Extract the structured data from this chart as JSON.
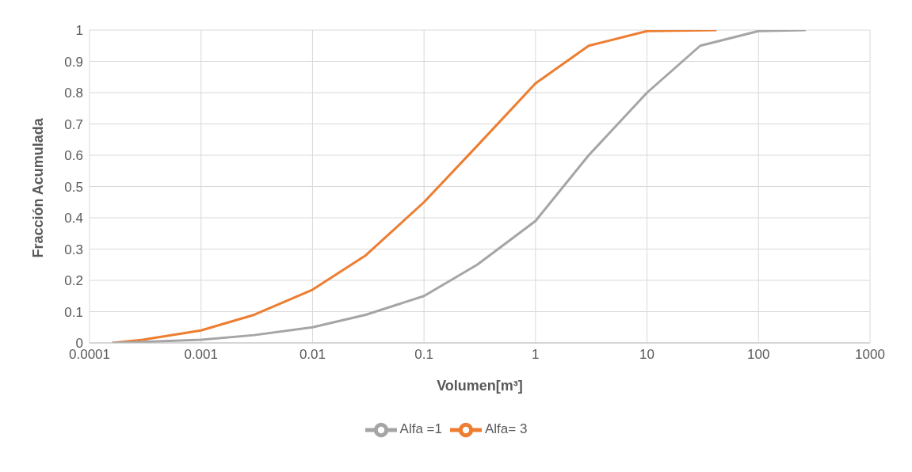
{
  "chart_data": {
    "type": "line",
    "xlabel": "Volumen[m³]",
    "ylabel": "Fracción Acumulada",
    "log": "x",
    "xlim": [
      0.0001,
      1000
    ],
    "xticks": [
      0.0001,
      0.001,
      0.01,
      0.1,
      1,
      10,
      100,
      1000
    ],
    "ylim": [
      0,
      1
    ],
    "yticks": [
      0,
      0.1,
      0.2,
      0.3,
      0.4,
      0.5,
      0.6,
      0.7,
      0.8,
      0.9,
      1
    ],
    "grid": true,
    "legend": "bottom",
    "marker": "none",
    "line_style": "solid",
    "series": [
      {
        "name": "Alfa= 3",
        "color": "#ed7d31",
        "x": [
          0.00016,
          0.0003,
          0.001,
          0.003,
          0.01,
          0.03,
          0.1,
          0.3,
          1,
          3,
          10,
          42
        ],
        "values": [
          0,
          0.01,
          0.04,
          0.09,
          0.17,
          0.28,
          0.45,
          0.63,
          0.83,
          0.95,
          0.997,
          1
        ]
      },
      {
        "name": "Alfa =1",
        "color": "#a5a5a5",
        "x": [
          0.00016,
          0.0003,
          0.001,
          0.003,
          0.01,
          0.03,
          0.1,
          0.3,
          1,
          3,
          10,
          30,
          100,
          265
        ],
        "values": [
          0,
          0.003,
          0.01,
          0.025,
          0.05,
          0.09,
          0.15,
          0.25,
          0.39,
          0.6,
          0.8,
          0.95,
          0.997,
          1
        ]
      }
    ]
  }
}
